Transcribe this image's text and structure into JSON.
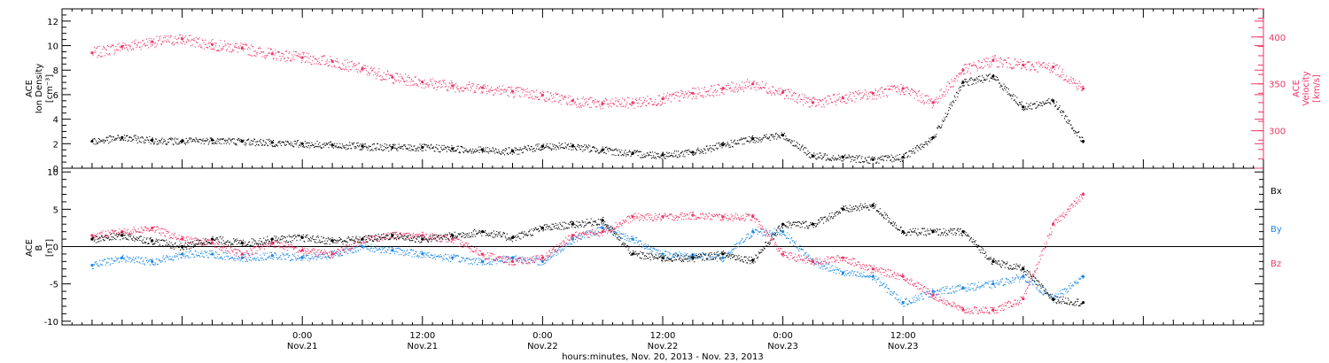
{
  "chart_data": [
    {
      "type": "scatter",
      "panel": "top",
      "ylabel_left": [
        "ACE",
        "Ion Density",
        "[cm⁻³]"
      ],
      "ylabel_right": [
        "ACE",
        "Velocity",
        "[km/s]"
      ],
      "ylim_left": [
        0,
        13
      ],
      "ylim_right": [
        260,
        430
      ],
      "yticks_left": [
        "0",
        "2",
        "4",
        "6",
        "8",
        "10",
        "12"
      ],
      "yticks_right": [
        "300",
        "350",
        "400"
      ],
      "grid": false,
      "series": [
        {
          "name": "Ion Density",
          "axis": "left",
          "color": "#000000",
          "x": [
            -21,
            -18,
            -15,
            -12,
            -9,
            -6,
            -3,
            0,
            3,
            6,
            9,
            12,
            15,
            18,
            21,
            24,
            27,
            30,
            33,
            36,
            39,
            42,
            45,
            48,
            51,
            54,
            57,
            60,
            63,
            66,
            69,
            72,
            75,
            78
          ],
          "y": [
            2.2,
            2.5,
            2.3,
            2.2,
            2.3,
            2.2,
            2.1,
            2.0,
            1.9,
            1.8,
            1.7,
            1.7,
            1.6,
            1.5,
            1.4,
            1.8,
            1.8,
            1.5,
            1.2,
            1.1,
            1.3,
            1.9,
            2.4,
            2.7,
            1.0,
            0.9,
            0.7,
            0.9,
            2.5,
            7.0,
            7.5,
            5.0,
            5.5,
            2.2
          ]
        },
        {
          "name": "Velocity",
          "axis": "right",
          "color": "#ee3466",
          "x": [
            -21,
            -18,
            -15,
            -12,
            -9,
            -6,
            -3,
            0,
            3,
            6,
            9,
            12,
            15,
            18,
            21,
            24,
            27,
            30,
            33,
            36,
            39,
            42,
            45,
            48,
            51,
            54,
            57,
            60,
            63,
            66,
            69,
            72,
            75,
            78
          ],
          "y": [
            383,
            390,
            395,
            398,
            392,
            388,
            382,
            378,
            374,
            366,
            357,
            352,
            348,
            346,
            342,
            338,
            332,
            329,
            330,
            334,
            340,
            345,
            350,
            341,
            330,
            335,
            340,
            345,
            330,
            365,
            375,
            370,
            368,
            345
          ]
        }
      ]
    },
    {
      "type": "scatter",
      "panel": "bottom",
      "ylabel": [
        "ACE",
        "B",
        "[nT]"
      ],
      "ylim": [
        -10.5,
        10.5
      ],
      "yticks": [
        "-10",
        "-5",
        "0",
        "5",
        "10"
      ],
      "xlabel": "hours:minutes, Nov. 20, 2013 - Nov. 23, 2013",
      "xlim": [
        -24,
        96
      ],
      "xticks": [
        {
          "x": 0,
          "label": "0:00",
          "date": "Nov.21"
        },
        {
          "x": 12,
          "label": "12:00",
          "date": "Nov.21"
        },
        {
          "x": 24,
          "label": "0:00",
          "date": "Nov.22"
        },
        {
          "x": 36,
          "label": "12:00",
          "date": "Nov.22"
        },
        {
          "x": 48,
          "label": "0:00",
          "date": "Nov.23"
        },
        {
          "x": 60,
          "label": "12:00",
          "date": "Nov.23"
        }
      ],
      "zero_line": true,
      "grid": false,
      "legend_position": "right",
      "series": [
        {
          "name": "Bx",
          "color": "#000000",
          "x": [
            -21,
            -18,
            -15,
            -12,
            -9,
            -6,
            -3,
            0,
            3,
            6,
            9,
            12,
            15,
            18,
            21,
            24,
            27,
            30,
            33,
            36,
            39,
            42,
            45,
            48,
            51,
            54,
            57,
            60,
            63,
            66,
            69,
            72,
            75,
            78
          ],
          "y": [
            1.0,
            1.5,
            0.8,
            0.0,
            1.0,
            0.5,
            1.0,
            1.2,
            0.8,
            1.0,
            1.5,
            1.0,
            1.5,
            2.0,
            1.2,
            2.5,
            3.0,
            3.5,
            -1.0,
            -1.5,
            -1.5,
            -1.0,
            -1.8,
            3.0,
            3.0,
            5.0,
            5.5,
            2.0,
            2.0,
            2.0,
            -2.0,
            -3.0,
            -7.0,
            -7.5
          ]
        },
        {
          "name": "By",
          "color": "#1e88e5",
          "x": [
            -21,
            -18,
            -15,
            -12,
            -9,
            -6,
            -3,
            0,
            3,
            6,
            9,
            12,
            15,
            18,
            21,
            24,
            27,
            30,
            33,
            36,
            39,
            42,
            45,
            48,
            51,
            54,
            57,
            60,
            63,
            66,
            69,
            72,
            75,
            78
          ],
          "y": [
            -2.5,
            -1.5,
            -2.0,
            -1.0,
            -1.0,
            -1.5,
            -1.2,
            -1.5,
            -1.0,
            0.0,
            -0.5,
            -1.0,
            -1.5,
            -2.0,
            -1.5,
            -2.0,
            1.0,
            2.5,
            1.0,
            -1.0,
            -1.2,
            -1.5,
            2.0,
            2.0,
            -2.0,
            -3.5,
            -4.0,
            -7.5,
            -6.0,
            -5.5,
            -5.0,
            -4.0,
            -7.0,
            -4.0
          ]
        },
        {
          "name": "Bz",
          "color": "#ee3466",
          "x": [
            -21,
            -18,
            -15,
            -12,
            -9,
            -6,
            -3,
            0,
            3,
            6,
            9,
            12,
            15,
            18,
            21,
            24,
            27,
            30,
            33,
            36,
            39,
            42,
            45,
            48,
            51,
            54,
            57,
            60,
            63,
            66,
            69,
            72,
            75,
            78
          ],
          "y": [
            1.5,
            2.0,
            2.5,
            1.0,
            0.5,
            -1.0,
            0.5,
            -0.5,
            -1.0,
            1.0,
            1.5,
            1.5,
            1.0,
            -1.0,
            -2.0,
            -1.5,
            1.5,
            2.0,
            4.0,
            4.0,
            4.2,
            4.0,
            4.0,
            -1.0,
            -2.0,
            -1.5,
            -3.0,
            -4.0,
            -6.5,
            -8.5,
            -8.5,
            -7.0,
            3.0,
            7.0
          ]
        }
      ]
    }
  ],
  "colors": {
    "black": "#000000",
    "red": "#ee3466",
    "blue": "#1e88e5"
  }
}
